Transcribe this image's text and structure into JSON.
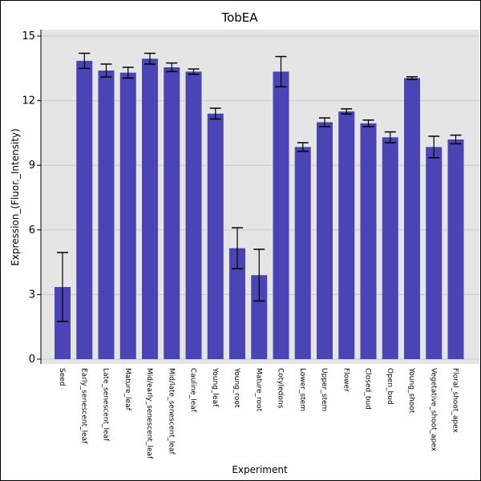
{
  "chart_data": {
    "type": "bar",
    "title": "TobEA",
    "xlabel": "Experiment",
    "ylabel": "Expression_(Fluor._Intensity)",
    "ylim": [
      0,
      15.3
    ],
    "yticks": [
      0,
      3,
      6,
      9,
      12,
      15
    ],
    "grid": true,
    "bar_color": "#4b44b5",
    "plot_background": "#e5e5e5",
    "categories": [
      "Seed",
      "Early_senescent_leaf",
      "Late_senescent_leaf",
      "Mature_leaf",
      "Mid/early_senescent_leaf",
      "Mid/late_senescent_leaf",
      "Cauline_leaf",
      "Young_leaf",
      "Young_root",
      "Mature_root",
      "Cotyledons",
      "Lower_stem",
      "Upper_stem",
      "Flower",
      "Closed_bud",
      "Open_bud",
      "Young_shoot",
      "Vegetative_shoot_apex",
      "Floral_shoot_apex"
    ],
    "values": [
      3.35,
      13.85,
      13.4,
      13.3,
      13.95,
      13.55,
      13.35,
      11.4,
      5.15,
      3.9,
      13.35,
      9.85,
      11.0,
      11.5,
      10.95,
      10.3,
      13.05,
      9.85,
      10.2
    ],
    "errors": [
      1.6,
      0.35,
      0.3,
      0.25,
      0.25,
      0.2,
      0.12,
      0.25,
      0.95,
      1.2,
      0.7,
      0.2,
      0.2,
      0.12,
      0.15,
      0.25,
      0.06,
      0.5,
      0.2
    ]
  }
}
